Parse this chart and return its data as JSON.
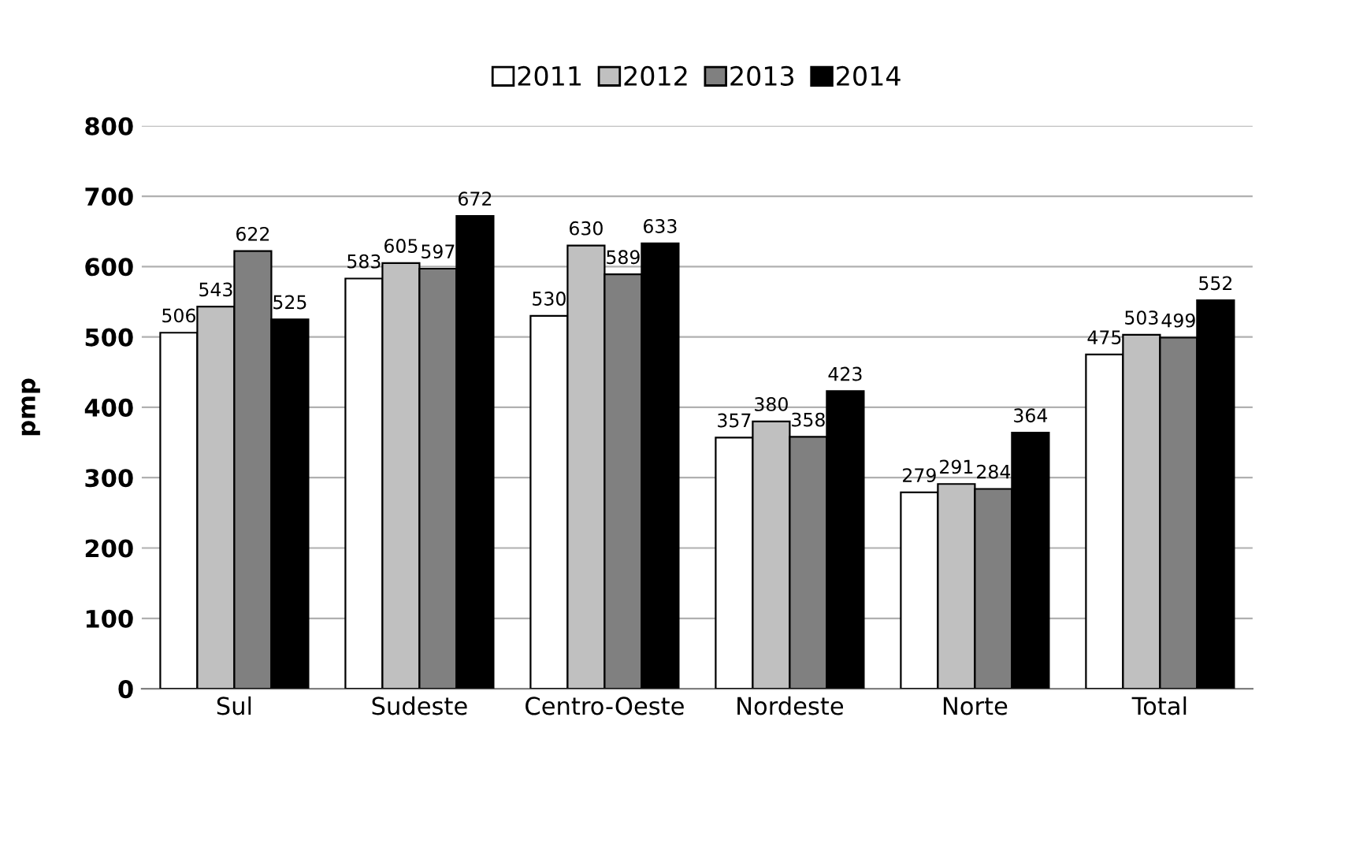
{
  "chart_data": {
    "type": "bar",
    "ylabel": "pmp",
    "categories": [
      "Sul",
      "Sudeste",
      "Centro-Oeste",
      "Nordeste",
      "Norte",
      "Total"
    ],
    "series": [
      {
        "name": "2011",
        "color": "#ffffff",
        "values": [
          506,
          583,
          530,
          357,
          279,
          475
        ]
      },
      {
        "name": "2012",
        "color": "#c0c0c0",
        "values": [
          543,
          605,
          630,
          380,
          291,
          503
        ]
      },
      {
        "name": "2013",
        "color": "#808080",
        "values": [
          622,
          597,
          589,
          358,
          284,
          499
        ]
      },
      {
        "name": "2014",
        "color": "#000000",
        "values": [
          525,
          672,
          633,
          423,
          364,
          552
        ]
      }
    ],
    "ylim": [
      0,
      800
    ],
    "yticks": [
      0,
      100,
      200,
      300,
      400,
      500,
      600,
      700,
      800
    ],
    "grid": "y",
    "legend": "top",
    "data_labels": true
  }
}
